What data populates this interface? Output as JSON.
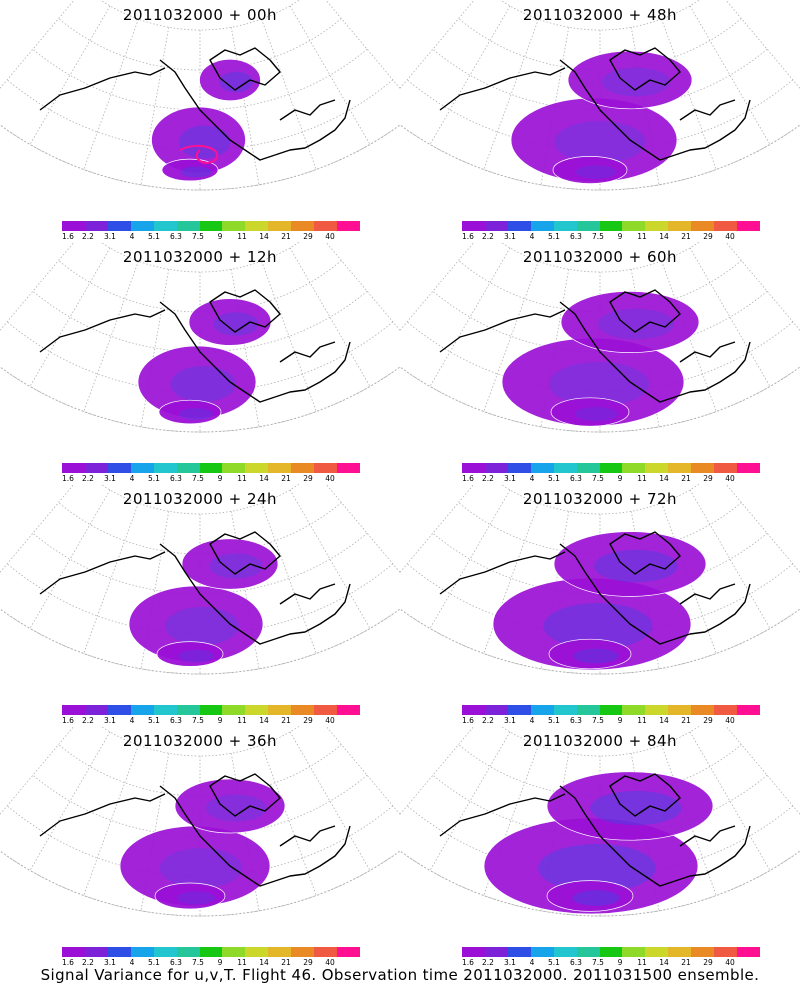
{
  "colors": {
    "scale": [
      "#9b10d6",
      "#7c22d8",
      "#2f4ee6",
      "#17a4ea",
      "#21c6cf",
      "#25c79a",
      "#16c814",
      "#8fda28",
      "#cbd82b",
      "#e4b62a",
      "#ea8a25",
      "#f05a42",
      "#ff1093"
    ],
    "coastline": "#000000",
    "grid": "#b0b0b0",
    "contour": "#ffffff"
  },
  "colorbar": {
    "labels": [
      "1.6",
      "2.2",
      "3.1",
      "4",
      "5.1",
      "6.3",
      "7.5",
      "9",
      "11",
      "14",
      "21",
      "29",
      "40"
    ]
  },
  "panels": [
    {
      "title": "2011032000 + 00h",
      "icon": "variance-map",
      "spread": 0.15,
      "level": 0.35
    },
    {
      "title": "2011032000 + 48h",
      "icon": "variance-map",
      "spread": 0.6,
      "level": 0.25
    },
    {
      "title": "2011032000 + 12h",
      "icon": "variance-map",
      "spread": 0.3,
      "level": 0.3
    },
    {
      "title": "2011032000 + 60h",
      "icon": "variance-map",
      "spread": 0.7,
      "level": 0.25
    },
    {
      "title": "2011032000 + 24h",
      "icon": "variance-map",
      "spread": 0.4,
      "level": 0.28
    },
    {
      "title": "2011032000 + 72h",
      "icon": "variance-map",
      "spread": 0.8,
      "level": 0.35
    },
    {
      "title": "2011032000 + 36h",
      "icon": "variance-map",
      "spread": 0.5,
      "level": 0.25
    },
    {
      "title": "2011032000 + 84h",
      "icon": "variance-map",
      "spread": 0.9,
      "level": 0.4
    }
  ],
  "footer": "Signal Variance for u,v,T. Flight 46. Observation time 2011032000. 2011031500 ensemble."
}
